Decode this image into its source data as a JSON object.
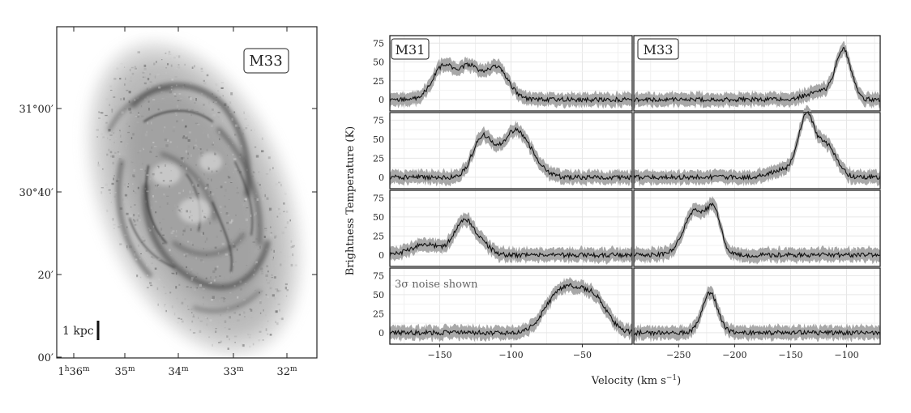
{
  "map": {
    "label": "M33",
    "scalebar_label": "1 kpc",
    "y_ticks": [
      "31°00′",
      "30°40′",
      "20′",
      "00′"
    ],
    "x_ticks": [
      {
        "main": "1",
        "sup1": "h",
        "mid": "36",
        "sup2": "m"
      },
      {
        "main": "35",
        "sup2": "m"
      },
      {
        "main": "34",
        "sup2": "m"
      },
      {
        "main": "33",
        "sup2": "m"
      },
      {
        "main": "32",
        "sup2": "m"
      }
    ]
  },
  "spectra": {
    "ylabel": "Brightness Temperature (K)",
    "xlabel": "Velocity (km s",
    "xlabel_sup": "−1",
    "xlabel_close": ")",
    "y_ticks": [
      "75",
      "50",
      "25",
      "0"
    ],
    "note": "3σ noise shown",
    "col_titles": [
      "M31",
      "M33"
    ],
    "m31_x_ticks": [
      "−150",
      "−100",
      "−50"
    ],
    "m33_x_ticks": [
      "−250",
      "−200",
      "−150",
      "−100"
    ]
  },
  "chart_data": {
    "type": "line",
    "ylabel": "Brightness Temperature (K)",
    "xlabel": "Velocity (km s−1)",
    "ylim": [
      -15,
      85
    ],
    "panels": [
      {
        "column": "M31",
        "row": 1,
        "xlim": [
          -185,
          -15
        ],
        "peaks": [
          {
            "v": -147,
            "t": 45,
            "w": 8
          },
          {
            "v": -129,
            "t": 40,
            "w": 7
          },
          {
            "v": -110,
            "t": 43,
            "w": 8
          }
        ]
      },
      {
        "column": "M31",
        "row": 2,
        "xlim": [
          -185,
          -15
        ],
        "peaks": [
          {
            "v": -120,
            "t": 52,
            "w": 7
          },
          {
            "v": -98,
            "t": 57,
            "w": 9
          },
          {
            "v": -85,
            "t": 15,
            "w": 8
          }
        ]
      },
      {
        "column": "M31",
        "row": 3,
        "xlim": [
          -185,
          -15
        ],
        "peaks": [
          {
            "v": -160,
            "t": 14,
            "w": 10
          },
          {
            "v": -133,
            "t": 45,
            "w": 7
          },
          {
            "v": -120,
            "t": 12,
            "w": 6
          }
        ]
      },
      {
        "column": "M31",
        "row": 4,
        "xlim": [
          -185,
          -15
        ],
        "peaks": [
          {
            "v": -68,
            "t": 38,
            "w": 10
          },
          {
            "v": -50,
            "t": 48,
            "w": 12
          },
          {
            "v": -38,
            "t": 15,
            "w": 7
          }
        ]
      },
      {
        "column": "M33",
        "row": 1,
        "xlim": [
          -290,
          -70
        ],
        "peaks": [
          {
            "v": -103,
            "t": 65,
            "w": 7
          },
          {
            "v": -125,
            "t": 10,
            "w": 12
          }
        ]
      },
      {
        "column": "M33",
        "row": 2,
        "xlim": [
          -290,
          -70
        ],
        "peaks": [
          {
            "v": -136,
            "t": 75,
            "w": 7
          },
          {
            "v": -118,
            "t": 42,
            "w": 9
          },
          {
            "v": -155,
            "t": 10,
            "w": 12
          }
        ]
      },
      {
        "column": "M33",
        "row": 3,
        "xlim": [
          -290,
          -70
        ],
        "peaks": [
          {
            "v": -235,
            "t": 58,
            "w": 10
          },
          {
            "v": -218,
            "t": 50,
            "w": 6
          }
        ]
      },
      {
        "column": "M33",
        "row": 4,
        "xlim": [
          -290,
          -70
        ],
        "peaks": [
          {
            "v": -222,
            "t": 52,
            "w": 7
          }
        ]
      }
    ]
  }
}
